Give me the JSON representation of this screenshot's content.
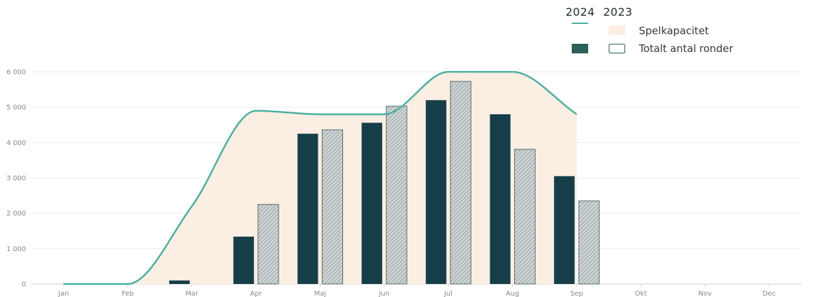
{
  "chart_data": {
    "type": "bar",
    "categories": [
      "Jan",
      "Feb",
      "Mar",
      "Apr",
      "Maj",
      "Jun",
      "Jul",
      "Aug",
      "Sep",
      "Okt",
      "Nov",
      "Dec"
    ],
    "series": [
      {
        "year": "2024",
        "kind": "bar",
        "values": [
          0,
          0,
          100,
          1340,
          4250,
          4560,
          5200,
          4800,
          3050,
          null,
          null,
          null
        ]
      },
      {
        "year": "2023",
        "kind": "bar",
        "values": [
          0,
          0,
          0,
          2250,
          4360,
          5030,
          5730,
          3810,
          2350,
          null,
          null,
          null
        ]
      },
      {
        "year": "2024",
        "kind": "line",
        "values": [
          0,
          0,
          2200,
          4900,
          4800,
          4800,
          6000,
          6000,
          4800,
          null,
          null,
          null
        ]
      }
    ],
    "ylim": [
      0,
      6000
    ],
    "yticks": [
      0,
      1000,
      2000,
      3000,
      4000,
      5000,
      6000
    ],
    "ytick_labels": [
      "0",
      "1 000",
      "2 000",
      "3 000",
      "4 000",
      "5 000",
      "6 000"
    ],
    "grid": true,
    "legend": {
      "placement": "top-right",
      "years": [
        "2024",
        "2023"
      ],
      "capacity_label": "Spelkapacitet",
      "rounds_label": "Totalt antal ronder"
    },
    "colors": {
      "bar2024": "#163e49",
      "bar2023_fill": "#c9cfd0",
      "bar2023_stroke": "#5a6a6c",
      "line": "#4aaf9f",
      "area": "#fbeee2",
      "legend_bar": "#2a5f5a"
    }
  }
}
